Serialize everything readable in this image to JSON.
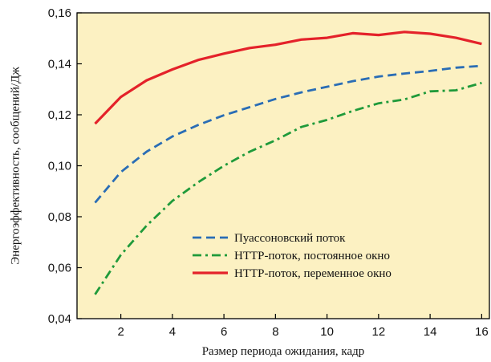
{
  "chart_data": {
    "type": "line",
    "title": "",
    "xlabel": "Размер периода ожидания, кадр",
    "ylabel": "Энергоэффективность, сообщений/Дж",
    "xlim": [
      0.3,
      16.3
    ],
    "ylim": [
      0.04,
      0.16
    ],
    "x_ticks": [
      2,
      4,
      6,
      8,
      10,
      12,
      14,
      16
    ],
    "x_tick_labels": [
      "2",
      "4",
      "6",
      "8",
      "10",
      "12",
      "14",
      "16"
    ],
    "y_ticks": [
      0.04,
      0.06,
      0.08,
      0.1,
      0.12,
      0.14,
      0.16
    ],
    "y_tick_labels": [
      "0,04",
      "0,06",
      "0,08",
      "0,10",
      "0,12",
      "0,14",
      "0,16"
    ],
    "grid": false,
    "legend_position": "bottom-right",
    "x": [
      1,
      2,
      3,
      4,
      5,
      6,
      7,
      8,
      9,
      10,
      11,
      12,
      13,
      14,
      15,
      16
    ],
    "series": [
      {
        "name": "Пуассоновский поток",
        "color": "#2a6db5",
        "style": "dashed",
        "values": [
          0.0855,
          0.0975,
          0.1055,
          0.1115,
          0.116,
          0.1198,
          0.123,
          0.1262,
          0.1288,
          0.131,
          0.1332,
          0.135,
          0.1362,
          0.1372,
          0.1385,
          0.1392
        ]
      },
      {
        "name": "HTTP-поток, постоянное окно",
        "color": "#1f9a3a",
        "style": "dashdot",
        "values": [
          0.0495,
          0.065,
          0.0765,
          0.0862,
          0.0935,
          0.1,
          0.1055,
          0.11,
          0.1152,
          0.118,
          0.1215,
          0.1245,
          0.126,
          0.1292,
          0.1296,
          0.1325
        ]
      },
      {
        "name": "HTTP-поток, переменное окно",
        "color": "#e4222a",
        "style": "solid",
        "values": [
          0.1165,
          0.127,
          0.1335,
          0.1378,
          0.1415,
          0.144,
          0.1462,
          0.1475,
          0.1495,
          0.1502,
          0.152,
          0.1513,
          0.1525,
          0.1518,
          0.1502,
          0.1478
        ]
      }
    ]
  },
  "colors": {
    "plot_background": "#fcf1c2",
    "axis": "#000000"
  }
}
